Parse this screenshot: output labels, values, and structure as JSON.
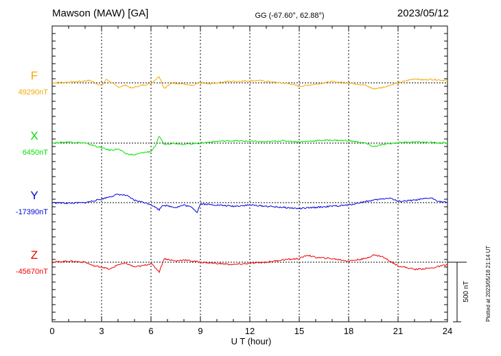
{
  "header": {
    "station": "Mawson (MAW)  [GA]",
    "coords": "GG (-67.60°,  62.88°)",
    "date": "2023/05/12"
  },
  "footer": {
    "plotted": "Plotted at 2023/05/18 21:14 UT"
  },
  "chart_data": {
    "type": "line",
    "xlabel": "U T (hour)",
    "xlim": [
      0,
      24
    ],
    "xticks": [
      0,
      3,
      6,
      9,
      12,
      15,
      18,
      21,
      24
    ],
    "scale_bar": {
      "label": "500 nT",
      "value_nT": 500
    },
    "grid": "dotted vertical every 3 hours, dotted baseline per component",
    "series": [
      {
        "name": "F",
        "baseline": "49290nT",
        "color": "#f5a800",
        "points_nT": [
          [
            0,
            0
          ],
          [
            1.0,
            6
          ],
          [
            1.5,
            10
          ],
          [
            2.3,
            20
          ],
          [
            3.0,
            -25
          ],
          [
            3.3,
            30
          ],
          [
            4.0,
            -35
          ],
          [
            4.5,
            -20
          ],
          [
            4.8,
            -45
          ],
          [
            5.3,
            -25
          ],
          [
            6.0,
            -5
          ],
          [
            6.5,
            55
          ],
          [
            6.8,
            -45
          ],
          [
            7.3,
            0
          ],
          [
            8.0,
            -10
          ],
          [
            8.5,
            -25
          ],
          [
            9.0,
            0
          ],
          [
            9.5,
            -10
          ],
          [
            10.5,
            10
          ],
          [
            11.5,
            15
          ],
          [
            12.5,
            20
          ],
          [
            13.5,
            5
          ],
          [
            14.5,
            -10
          ],
          [
            15.0,
            -30
          ],
          [
            16.0,
            -10
          ],
          [
            17.0,
            10
          ],
          [
            18.0,
            0
          ],
          [
            19.0,
            -20
          ],
          [
            19.5,
            -50
          ],
          [
            20.0,
            -40
          ],
          [
            21.0,
            0
          ],
          [
            22.0,
            35
          ],
          [
            22.5,
            25
          ],
          [
            23.0,
            30
          ],
          [
            24.0,
            20
          ]
        ]
      },
      {
        "name": "X",
        "baseline": "6450nT",
        "color": "#00e000",
        "points_nT": [
          [
            0,
            0
          ],
          [
            1.0,
            10
          ],
          [
            2.0,
            0
          ],
          [
            3.0,
            -40
          ],
          [
            3.5,
            -60
          ],
          [
            4.0,
            -50
          ],
          [
            4.5,
            -90
          ],
          [
            5.0,
            -100
          ],
          [
            5.5,
            -80
          ],
          [
            6.0,
            -70
          ],
          [
            6.3,
            -20
          ],
          [
            6.5,
            60
          ],
          [
            6.8,
            -10
          ],
          [
            7.3,
            0
          ],
          [
            8.0,
            -10
          ],
          [
            9.0,
            0
          ],
          [
            10.0,
            15
          ],
          [
            11.0,
            20
          ],
          [
            12.0,
            15
          ],
          [
            13.0,
            10
          ],
          [
            14.0,
            20
          ],
          [
            15.0,
            10
          ],
          [
            16.0,
            20
          ],
          [
            17.0,
            25
          ],
          [
            18.0,
            20
          ],
          [
            19.0,
            0
          ],
          [
            19.5,
            -30
          ],
          [
            20.0,
            -15
          ],
          [
            21.0,
            5
          ],
          [
            22.0,
            10
          ],
          [
            23.0,
            5
          ],
          [
            24.0,
            0
          ]
        ]
      },
      {
        "name": "Y",
        "baseline": "-17390nT",
        "color": "#0000dd",
        "points_nT": [
          [
            0,
            0
          ],
          [
            1.0,
            -5
          ],
          [
            2.0,
            0
          ],
          [
            3.0,
            30
          ],
          [
            4.0,
            70
          ],
          [
            4.5,
            60
          ],
          [
            5.0,
            20
          ],
          [
            5.5,
            5
          ],
          [
            6.0,
            -15
          ],
          [
            6.5,
            -60
          ],
          [
            6.7,
            -20
          ],
          [
            7.5,
            -40
          ],
          [
            8.0,
            -20
          ],
          [
            8.5,
            -40
          ],
          [
            8.8,
            -80
          ],
          [
            9.0,
            -10
          ],
          [
            10.0,
            -20
          ],
          [
            11.0,
            -30
          ],
          [
            12.0,
            -20
          ],
          [
            13.0,
            -30
          ],
          [
            14.0,
            -40
          ],
          [
            15.0,
            -50
          ],
          [
            16.0,
            -40
          ],
          [
            17.0,
            -30
          ],
          [
            18.0,
            -20
          ],
          [
            19.0,
            10
          ],
          [
            20.0,
            30
          ],
          [
            20.5,
            40
          ],
          [
            21.0,
            10
          ],
          [
            22.0,
            20
          ],
          [
            23.0,
            40
          ],
          [
            23.5,
            10
          ],
          [
            24.0,
            0
          ]
        ]
      },
      {
        "name": "Z",
        "baseline": "-45670nT",
        "color": "#ee0000",
        "points_nT": [
          [
            0,
            0
          ],
          [
            1.0,
            10
          ],
          [
            2.0,
            0
          ],
          [
            2.5,
            -30
          ],
          [
            3.0,
            -40
          ],
          [
            3.5,
            -60
          ],
          [
            4.0,
            -20
          ],
          [
            4.5,
            -10
          ],
          [
            5.0,
            -40
          ],
          [
            5.5,
            -30
          ],
          [
            6.0,
            -10
          ],
          [
            6.5,
            -80
          ],
          [
            6.8,
            30
          ],
          [
            7.5,
            10
          ],
          [
            8.0,
            20
          ],
          [
            9.0,
            0
          ],
          [
            10.0,
            -10
          ],
          [
            11.0,
            -20
          ],
          [
            12.0,
            -10
          ],
          [
            13.0,
            0
          ],
          [
            14.0,
            20
          ],
          [
            15.0,
            30
          ],
          [
            15.5,
            60
          ],
          [
            16.0,
            40
          ],
          [
            17.0,
            30
          ],
          [
            18.0,
            10
          ],
          [
            19.0,
            30
          ],
          [
            19.5,
            60
          ],
          [
            20.0,
            50
          ],
          [
            21.0,
            -30
          ],
          [
            22.0,
            -60
          ],
          [
            23.0,
            -50
          ],
          [
            24.0,
            -20
          ]
        ]
      }
    ]
  }
}
